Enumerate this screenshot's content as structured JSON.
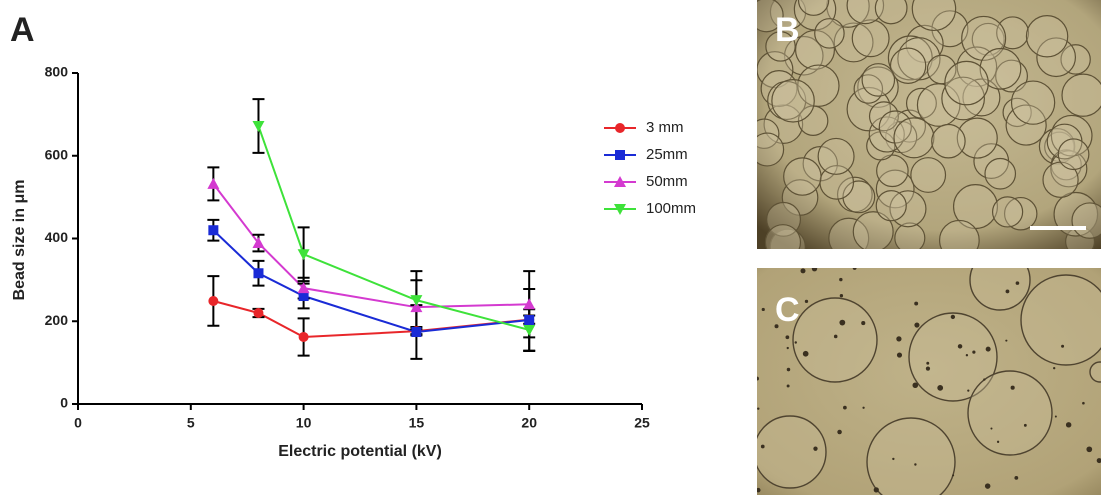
{
  "chart_data": {
    "type": "line",
    "panel_label": "A",
    "xlabel": "Electric potential (kV)",
    "ylabel": "Bead size in μm",
    "x": [
      6,
      8,
      10,
      15,
      20
    ],
    "series": [
      {
        "name": "3 mm",
        "color": "#e8262a",
        "marker": "circle",
        "values": [
          249,
          220,
          162,
          176,
          204
        ],
        "errors": [
          60,
          10,
          45,
          10,
          10
        ]
      },
      {
        "name": "25mm",
        "color": "#1a2bd6",
        "marker": "square",
        "values": [
          420,
          316,
          261,
          174,
          203
        ],
        "errors": [
          25,
          30,
          30,
          65,
          75
        ]
      },
      {
        "name": "50mm",
        "color": "#d43ad0",
        "marker": "triangle-up",
        "values": [
          532,
          389,
          280,
          234,
          241
        ],
        "errors": [
          40,
          20,
          25,
          65,
          80
        ]
      },
      {
        "name": "100mm",
        "color": "#3ee23a",
        "marker": "triangle-down",
        "values": [
          null,
          672,
          362,
          251,
          179
        ],
        "errors": [
          null,
          65,
          65,
          70,
          50
        ]
      }
    ],
    "xlim": [
      0,
      25
    ],
    "xticks": [
      0,
      5,
      10,
      15,
      20,
      25
    ],
    "ylim": [
      0,
      800
    ],
    "yticks": [
      0,
      200,
      400,
      600,
      800
    ],
    "legend": "upper-right"
  },
  "images": [
    {
      "label": "B"
    },
    {
      "label": "C"
    }
  ]
}
